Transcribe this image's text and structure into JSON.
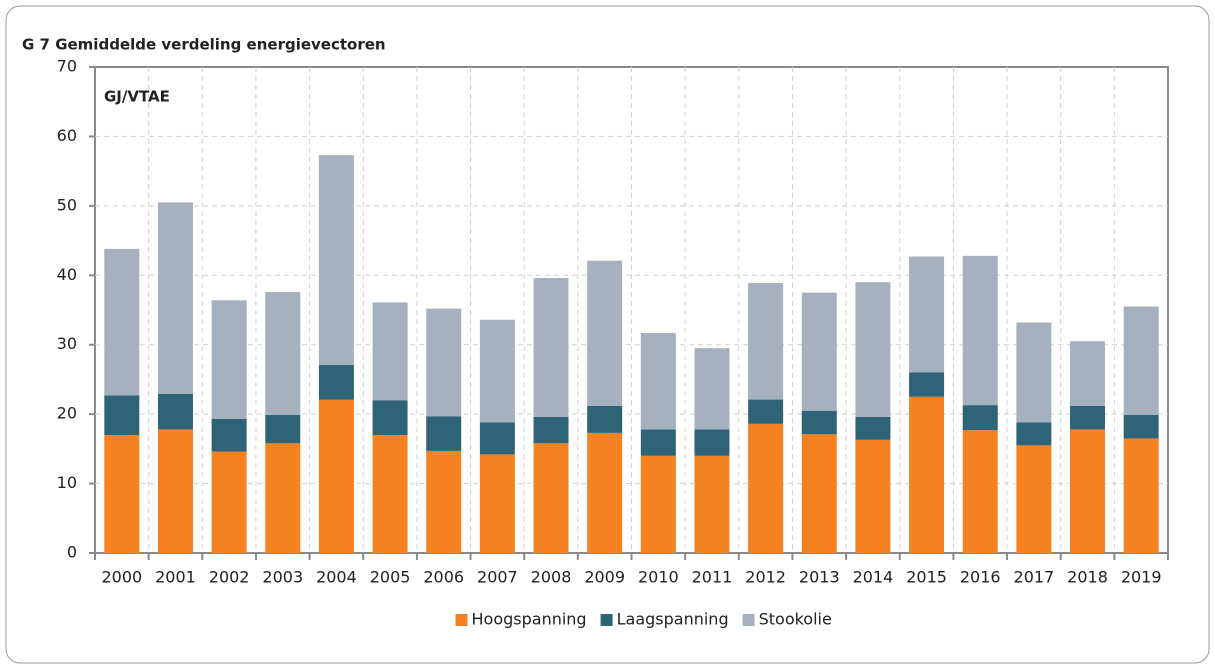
{
  "chart_data": {
    "type": "stacked_bar",
    "title": "G 7 Gemiddelde verdeling energievectoren",
    "unit_label": "GJ/VTAE",
    "categories": [
      "2000",
      "2001",
      "2002",
      "2003",
      "2004",
      "2005",
      "2006",
      "2007",
      "2008",
      "2009",
      "2010",
      "2011",
      "2012",
      "2013",
      "2014",
      "2015",
      "2016",
      "2017",
      "2018",
      "2019"
    ],
    "series": [
      {
        "name": "Hoogspanning",
        "color": "#f58220",
        "values": [
          17.0,
          17.8,
          14.6,
          15.8,
          22.1,
          17.0,
          14.7,
          14.2,
          15.8,
          17.3,
          14.0,
          14.0,
          18.6,
          17.1,
          16.3,
          22.5,
          17.7,
          15.5,
          17.8,
          16.5
        ]
      },
      {
        "name": "Laagspanning",
        "color": "#2e6378",
        "values": [
          5.7,
          5.1,
          4.7,
          4.1,
          5.0,
          5.0,
          5.0,
          4.6,
          3.8,
          3.9,
          3.8,
          3.8,
          3.5,
          3.4,
          3.3,
          3.5,
          3.6,
          3.3,
          3.4,
          3.4
        ]
      },
      {
        "name": "Stookolie",
        "color": "#a5b1bf",
        "values": [
          21.1,
          27.6,
          17.1,
          17.7,
          30.2,
          14.1,
          15.5,
          14.8,
          20.0,
          20.9,
          13.9,
          11.7,
          16.8,
          17.0,
          19.4,
          16.7,
          21.5,
          14.4,
          9.3,
          15.6
        ]
      }
    ],
    "ylim": [
      0,
      70
    ],
    "yticks": [
      0,
      10,
      20,
      30,
      40,
      50,
      60,
      70
    ],
    "grid": true,
    "legend": "bottom"
  }
}
